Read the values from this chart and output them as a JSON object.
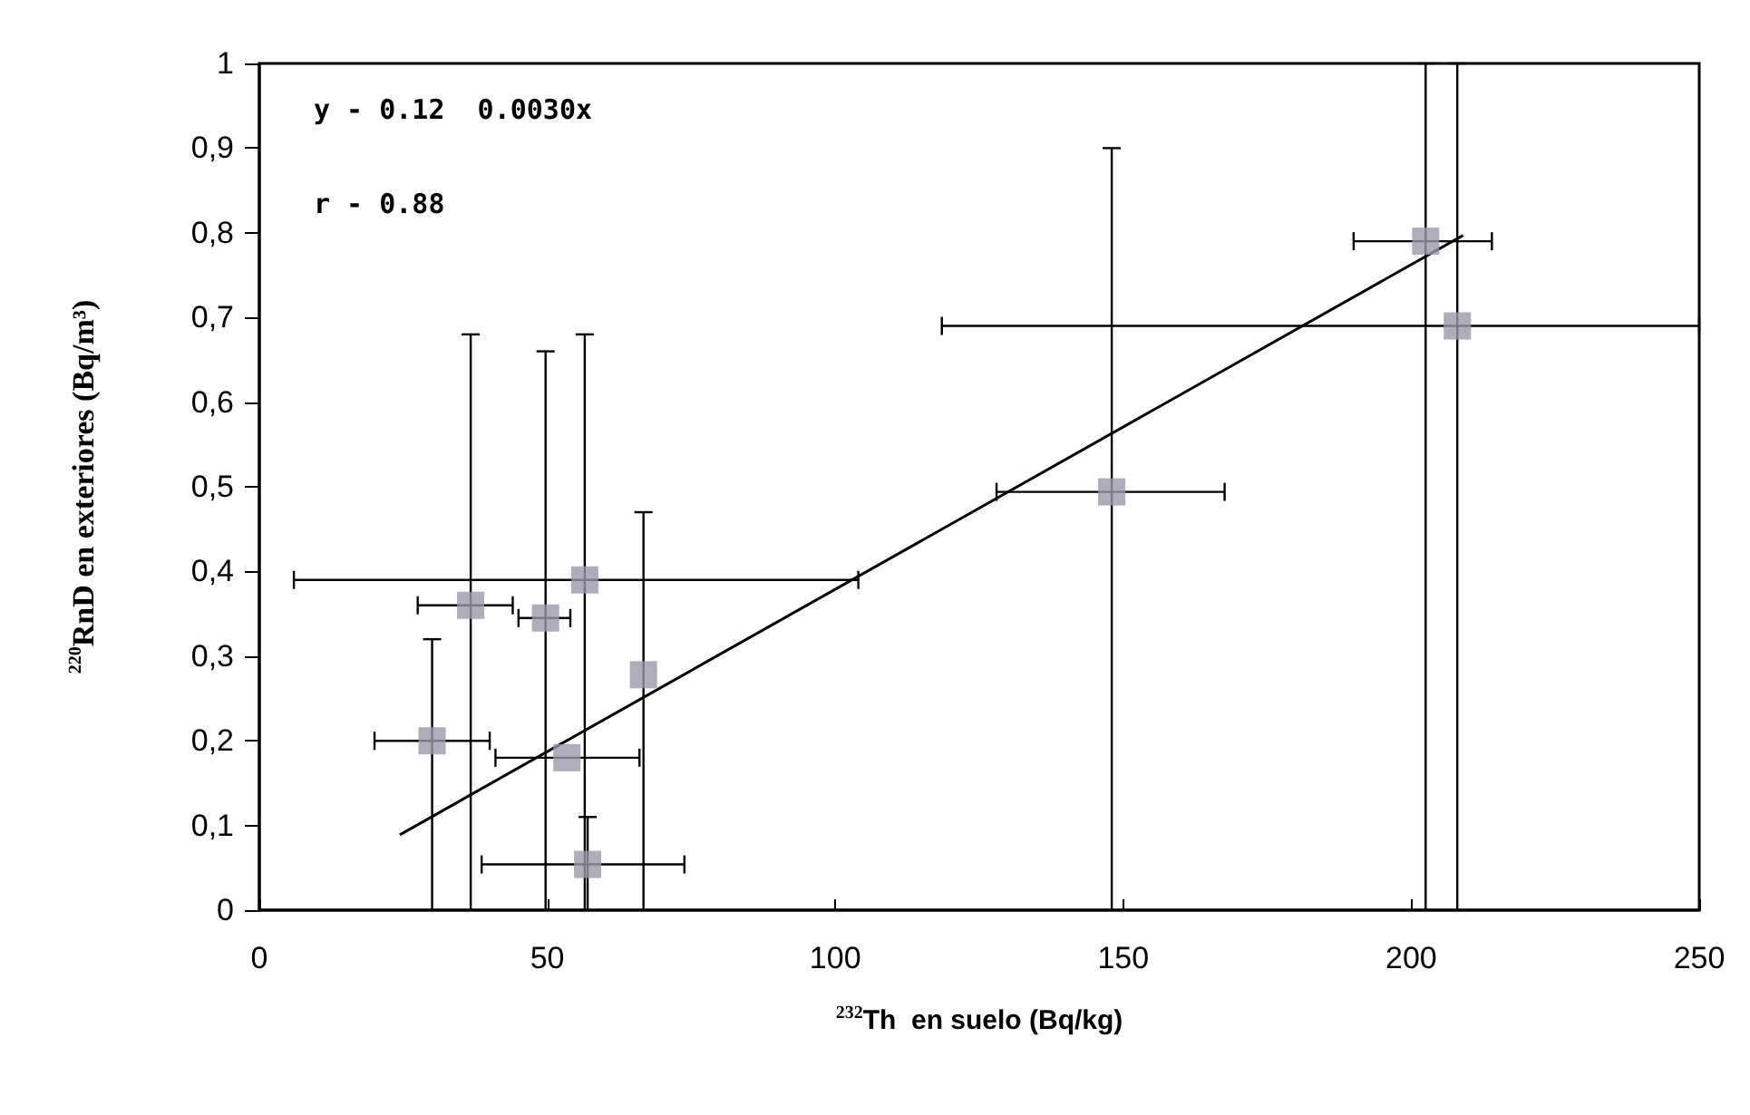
{
  "chart_data": {
    "type": "scatter",
    "xlabel": "$^{232}$Th  en suelo (Bq/kg)",
    "ylabel": "$^{220}$RnD en exteriores (Bq/m³)",
    "annotations": [
      "y - 0.12  0.0030x",
      "r - 0.88"
    ],
    "xlim": [
      0,
      250
    ],
    "xticks": [
      0,
      50,
      100,
      150,
      200,
      250
    ],
    "ylim": [
      0,
      1
    ],
    "yticks": [
      {
        "value": 0,
        "label": "0"
      },
      {
        "value": 0.1,
        "label": "0,1"
      },
      {
        "value": 0.2,
        "label": "0,2"
      },
      {
        "value": 0.3,
        "label": "0,3"
      },
      {
        "value": 0.4,
        "label": "0,4"
      },
      {
        "value": 0.5,
        "label": "0,5"
      },
      {
        "value": 0.6,
        "label": "0,6"
      },
      {
        "value": 0.7,
        "label": "0,7"
      },
      {
        "value": 0.8,
        "label": "0,8"
      },
      {
        "value": 0.9,
        "label": "0,9"
      },
      {
        "value": 1,
        "label": "1"
      }
    ],
    "grid": false,
    "marker": "square",
    "series": [
      {
        "color": "#9a98aa",
        "x": [
          30,
          36.7,
          49.7,
          56.5,
          53.4,
          66.7,
          57,
          148,
          202.5,
          208
        ],
        "values": [
          0.2,
          0.36,
          0.345,
          0.39,
          0.18,
          0.278,
          0.054,
          0.494,
          0.79,
          0.69
        ],
        "errors": [
          [
            0,
            0.32
          ],
          [
            0,
            0.68
          ],
          [
            0,
            0.66
          ],
          [
            0,
            0.68
          ],
          null,
          [
            0,
            0.47
          ],
          [
            0,
            0.11
          ],
          [
            0,
            0.9
          ],
          [
            0,
            1
          ],
          [
            0,
            1
          ]
        ],
        "xerrors": [
          [
            20,
            40
          ],
          [
            27.5,
            44
          ],
          [
            45,
            54
          ],
          [
            6,
            104
          ],
          [
            41,
            66
          ],
          null,
          [
            38.6,
            73.8
          ],
          [
            128,
            167.6
          ],
          [
            190,
            214
          ],
          [
            118.5,
            250
          ]
        ]
      },
      {
        "type": "line",
        "color": "#000000",
        "marker": "none",
        "x": [
          24.4,
          209
        ],
        "values": [
          0.089,
          0.797
        ]
      }
    ]
  }
}
